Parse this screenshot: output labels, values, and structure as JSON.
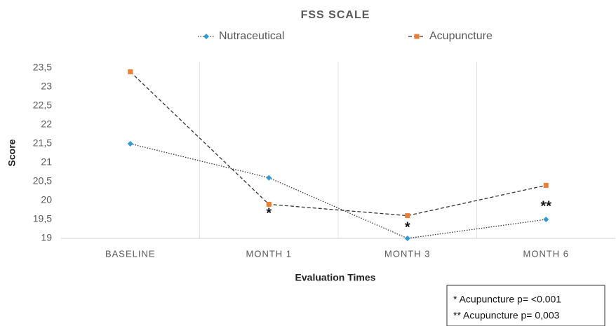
{
  "chart_data": {
    "type": "line",
    "title": "FSS SCALE",
    "x_label": "Evaluation Times",
    "y_label": "Score",
    "categories": [
      "BASELINE",
      "MONTH 1",
      "MONTH 3",
      "MONTH 6"
    ],
    "series": [
      {
        "name": "Nutraceutical",
        "color": "#2e9bd6",
        "line_style": "dotted",
        "marker": "diamond",
        "values": [
          21.5,
          20.6,
          19.0,
          19.5
        ]
      },
      {
        "name": "Acupuncture",
        "color": "#ed7d31",
        "line_style": "dashed",
        "marker": "square",
        "values": [
          23.4,
          19.9,
          19.6,
          20.4
        ]
      }
    ],
    "ylim": [
      19,
      23.5
    ],
    "yticks": [
      19,
      {
        "value": 19.5,
        "label": "19,5"
      },
      20,
      {
        "value": 20.5,
        "label": "20,5"
      },
      21,
      {
        "value": 21.5,
        "label": "21,5"
      },
      22,
      {
        "value": 22.5,
        "label": "22,5"
      },
      23,
      {
        "value": 23.5,
        "label": "23,5"
      }
    ],
    "annotations": [
      "*",
      "*",
      "**"
    ],
    "notes": [
      "* Acupuncture p= <0.001",
      "** Acupuncture p= 0,003"
    ]
  }
}
